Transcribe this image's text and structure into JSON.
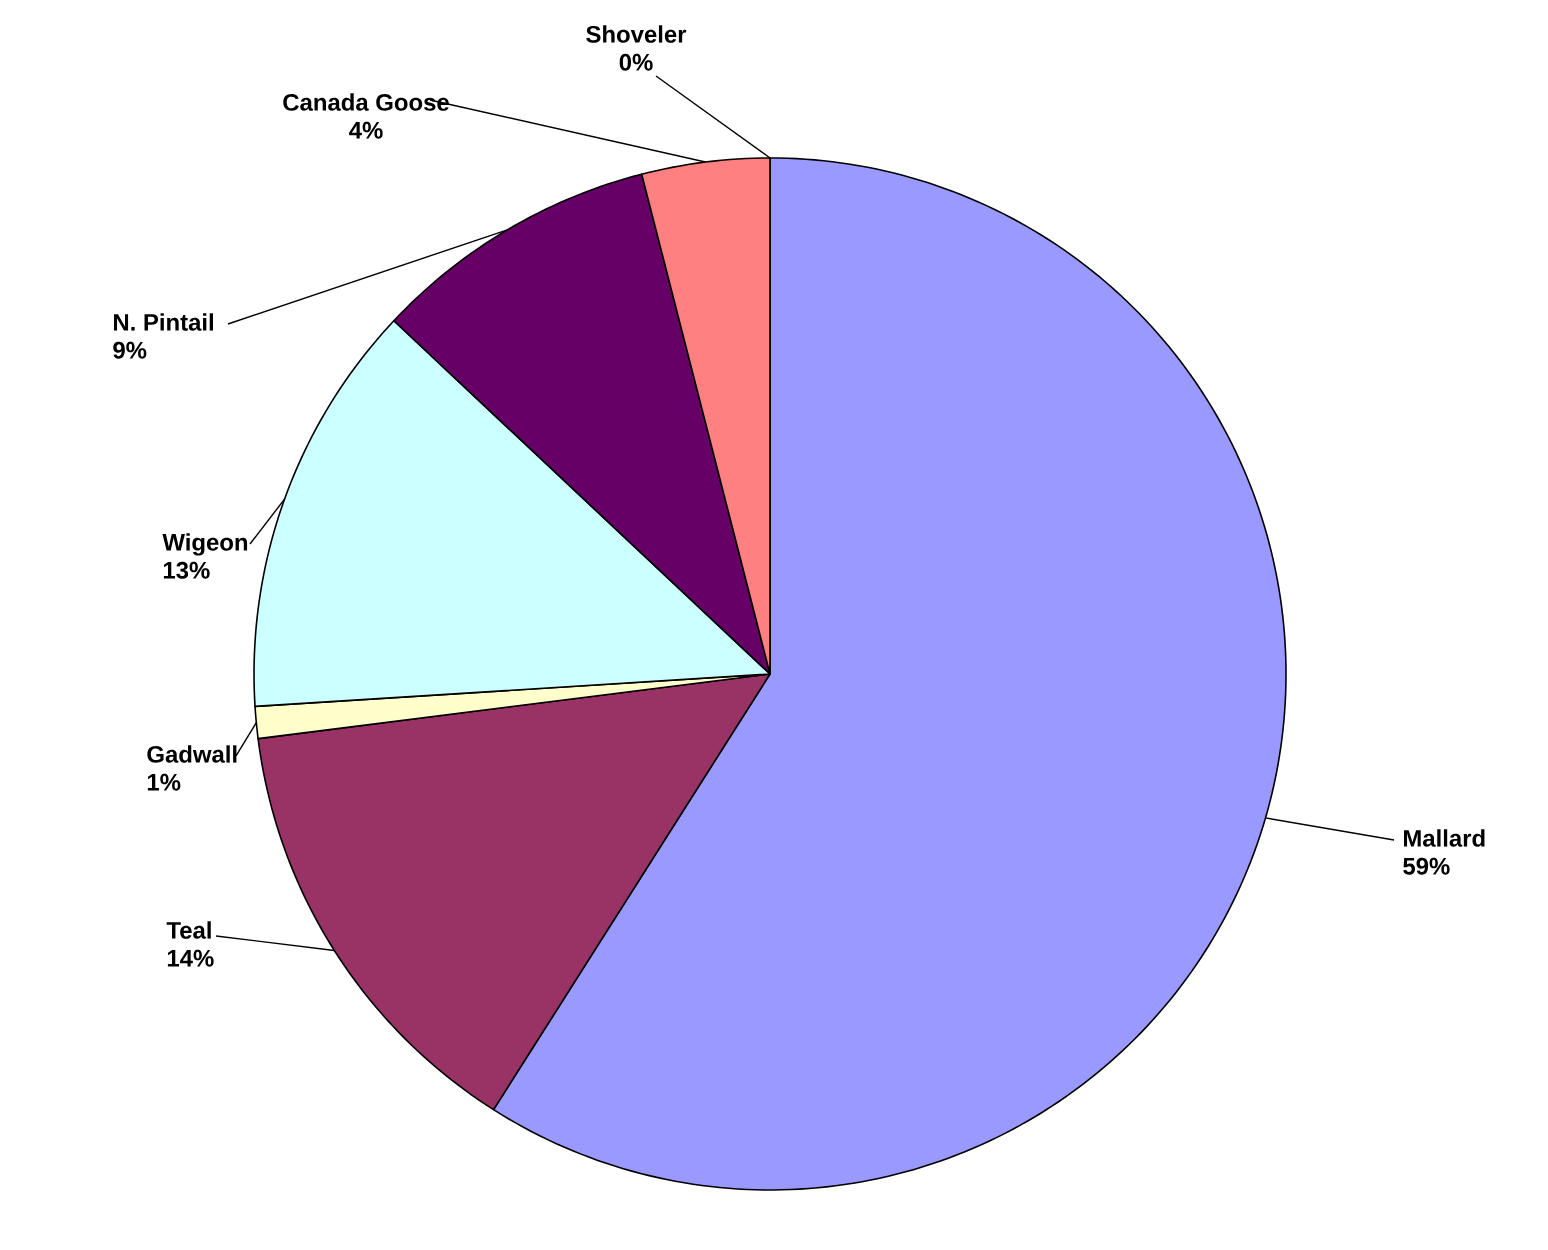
{
  "chart_data": {
    "type": "pie",
    "categories": [
      "Mallard",
      "Teal",
      "Gadwall",
      "Wigeon",
      "N. Pintail",
      "Canada Goose",
      "Shoveler"
    ],
    "values": [
      59,
      14,
      1,
      13,
      9,
      4,
      0
    ],
    "value_labels": [
      "59%",
      "14%",
      "1%",
      "13%",
      "9%",
      "4%",
      "0%"
    ],
    "colors": [
      "#9999ff",
      "#993366",
      "#ffffcc",
      "#ccffff",
      "#660066",
      "#ff8080",
      "#0066cc"
    ]
  }
}
